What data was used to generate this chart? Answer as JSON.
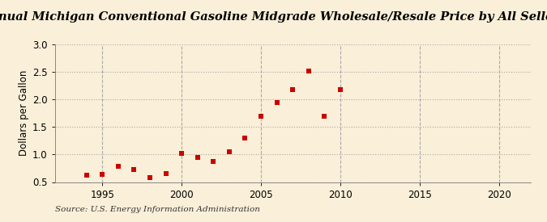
{
  "title": "Annual Michigan Conventional Gasoline Midgrade Wholesale/Resale Price by All Sellers",
  "ylabel": "Dollars per Gallon",
  "source": "Source: U.S. Energy Information Administration",
  "background_color": "#faefd8",
  "marker_color": "#cc0000",
  "years": [
    1994,
    1995,
    1996,
    1997,
    1998,
    1999,
    2000,
    2001,
    2002,
    2003,
    2004,
    2005,
    2006,
    2007,
    2008,
    2009,
    2010
  ],
  "values": [
    0.62,
    0.64,
    0.78,
    0.72,
    0.58,
    0.65,
    1.02,
    0.95,
    0.88,
    1.05,
    1.3,
    1.7,
    1.95,
    2.18,
    2.52,
    1.7,
    2.18
  ],
  "xlim": [
    1992,
    2022
  ],
  "ylim": [
    0.5,
    3.0
  ],
  "xticks": [
    1995,
    2000,
    2005,
    2010,
    2015,
    2020
  ],
  "yticks": [
    0.5,
    1.0,
    1.5,
    2.0,
    2.5,
    3.0
  ],
  "title_fontsize": 10.5,
  "label_fontsize": 8.5,
  "tick_fontsize": 8.5,
  "source_fontsize": 7.5
}
